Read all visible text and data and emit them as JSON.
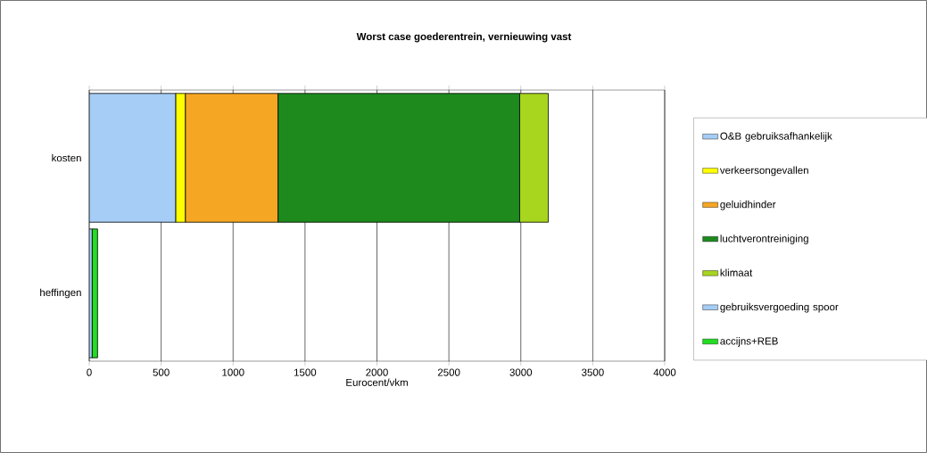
{
  "chart_data": {
    "type": "bar",
    "orientation": "horizontal",
    "stacked": true,
    "title": "Worst case goederentrein, vernieuwing vast",
    "xlabel": "Eurocent/vkm",
    "categories": [
      "kosten",
      "heffingen"
    ],
    "series": [
      {
        "name": "O&B gebruiksafhankelijk",
        "color": "#a6cdf5",
        "values": [
          602,
          null
        ]
      },
      {
        "name": "verkeersongevallen",
        "color": "#ffff00",
        "values": [
          67,
          null
        ]
      },
      {
        "name": "geluidhinder",
        "color": "#f5a623",
        "values": [
          644,
          null
        ]
      },
      {
        "name": "luchtverontreiniging",
        "color": "#1e8a1e",
        "values": [
          1679,
          null
        ]
      },
      {
        "name": "klimaat",
        "color": "#a8d51e",
        "values": [
          199,
          null
        ]
      },
      {
        "name": "gebruiksvergoeding spoor",
        "color": "#a6cdf5",
        "values": [
          null,
          21
        ]
      },
      {
        "name": "accijns+REB",
        "color": "#22dd22",
        "values": [
          null,
          37
        ]
      }
    ],
    "xlim": [
      0,
      4000
    ],
    "xticks": [
      0,
      500,
      1000,
      1500,
      2000,
      2500,
      3000,
      3500,
      4000
    ],
    "grid": "x",
    "legend": "right"
  }
}
